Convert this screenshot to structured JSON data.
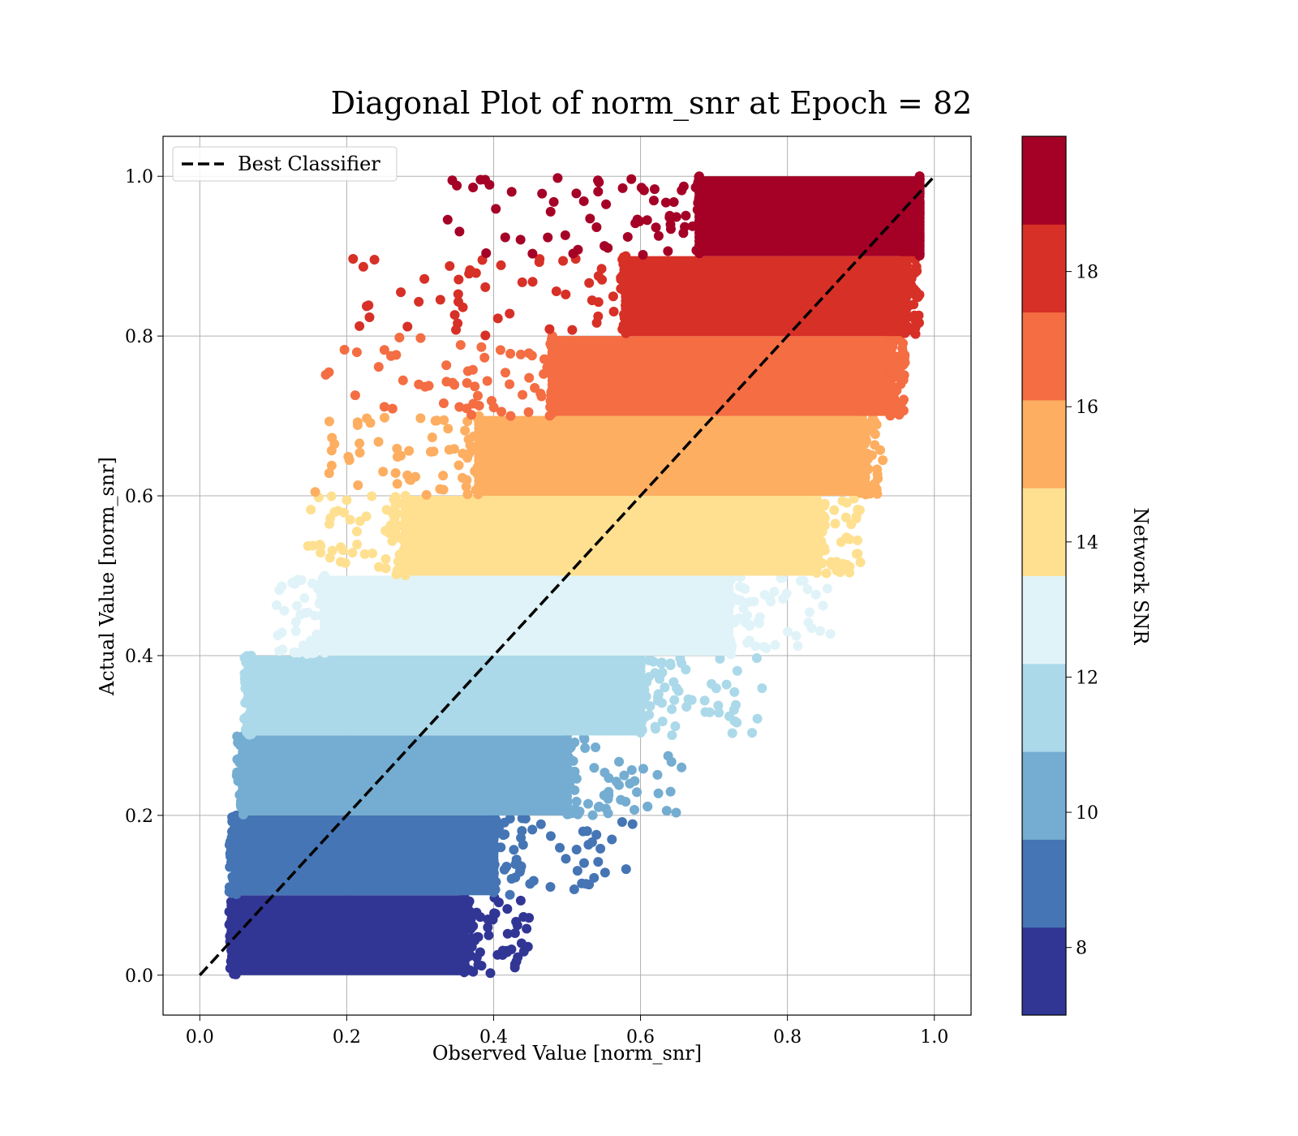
{
  "chart_data": {
    "type": "scatter",
    "title": "Diagonal Plot of norm_snr at Epoch = 82",
    "xlabel": "Observed Value [norm_snr]",
    "ylabel": "Actual Value [norm_snr]",
    "xlim": [
      -0.05,
      1.05
    ],
    "ylim": [
      -0.05,
      1.05
    ],
    "xticks": [
      "0.0",
      "0.2",
      "0.4",
      "0.6",
      "0.8",
      "1.0"
    ],
    "yticks": [
      "0.0",
      "0.2",
      "0.4",
      "0.6",
      "0.8",
      "1.0"
    ],
    "grid": true,
    "legend": {
      "location": "upper left",
      "entries": [
        {
          "label": "Best Classifier",
          "style": "dashed",
          "color": "#000000"
        }
      ]
    },
    "reference_line": {
      "name": "Best Classifier",
      "x": [
        0.0,
        1.0
      ],
      "y": [
        0.0,
        1.0
      ]
    },
    "colorbar": {
      "label": "Network SNR",
      "range": [
        7,
        20
      ],
      "ticks": [
        "8",
        "10",
        "12",
        "14",
        "16",
        "18"
      ],
      "colors": [
        "#313695",
        "#4575b4",
        "#74add1",
        "#abd9e9",
        "#e0f3f8",
        "#fee090",
        "#fdae61",
        "#f46d43",
        "#d73027",
        "#a50026"
      ]
    },
    "bands": [
      {
        "y_range": [
          0.0,
          0.1
        ],
        "x_core": [
          0.05,
          0.36
        ],
        "x_spread": [
          0.04,
          0.45
        ],
        "color": "#313695"
      },
      {
        "y_range": [
          0.1,
          0.2
        ],
        "x_core": [
          0.05,
          0.4
        ],
        "x_spread": [
          0.04,
          0.59
        ],
        "color": "#4575b4"
      },
      {
        "y_range": [
          0.2,
          0.3
        ],
        "x_core": [
          0.06,
          0.5
        ],
        "x_spread": [
          0.05,
          0.68
        ],
        "color": "#74add1"
      },
      {
        "y_range": [
          0.3,
          0.4
        ],
        "x_core": [
          0.07,
          0.6
        ],
        "x_spread": [
          0.06,
          0.78
        ],
        "color": "#abd9e9"
      },
      {
        "y_range": [
          0.4,
          0.5
        ],
        "x_core": [
          0.17,
          0.72
        ],
        "x_spread": [
          0.1,
          0.86
        ],
        "color": "#e0f3f8"
      },
      {
        "y_range": [
          0.5,
          0.6
        ],
        "x_core": [
          0.28,
          0.84
        ],
        "x_spread": [
          0.12,
          0.9
        ],
        "color": "#fee090"
      },
      {
        "y_range": [
          0.6,
          0.7
        ],
        "x_core": [
          0.38,
          0.9
        ],
        "x_spread": [
          0.15,
          0.93
        ],
        "color": "#fdae61"
      },
      {
        "y_range": [
          0.7,
          0.8
        ],
        "x_core": [
          0.48,
          0.94
        ],
        "x_spread": [
          0.17,
          0.96
        ],
        "color": "#f46d43"
      },
      {
        "y_range": [
          0.8,
          0.9
        ],
        "x_core": [
          0.58,
          0.96
        ],
        "x_spread": [
          0.2,
          0.98
        ],
        "color": "#d73027"
      },
      {
        "y_range": [
          0.9,
          1.0
        ],
        "x_core": [
          0.68,
          0.98
        ],
        "x_spread": [
          0.32,
          0.98
        ],
        "color": "#a50026"
      }
    ]
  }
}
